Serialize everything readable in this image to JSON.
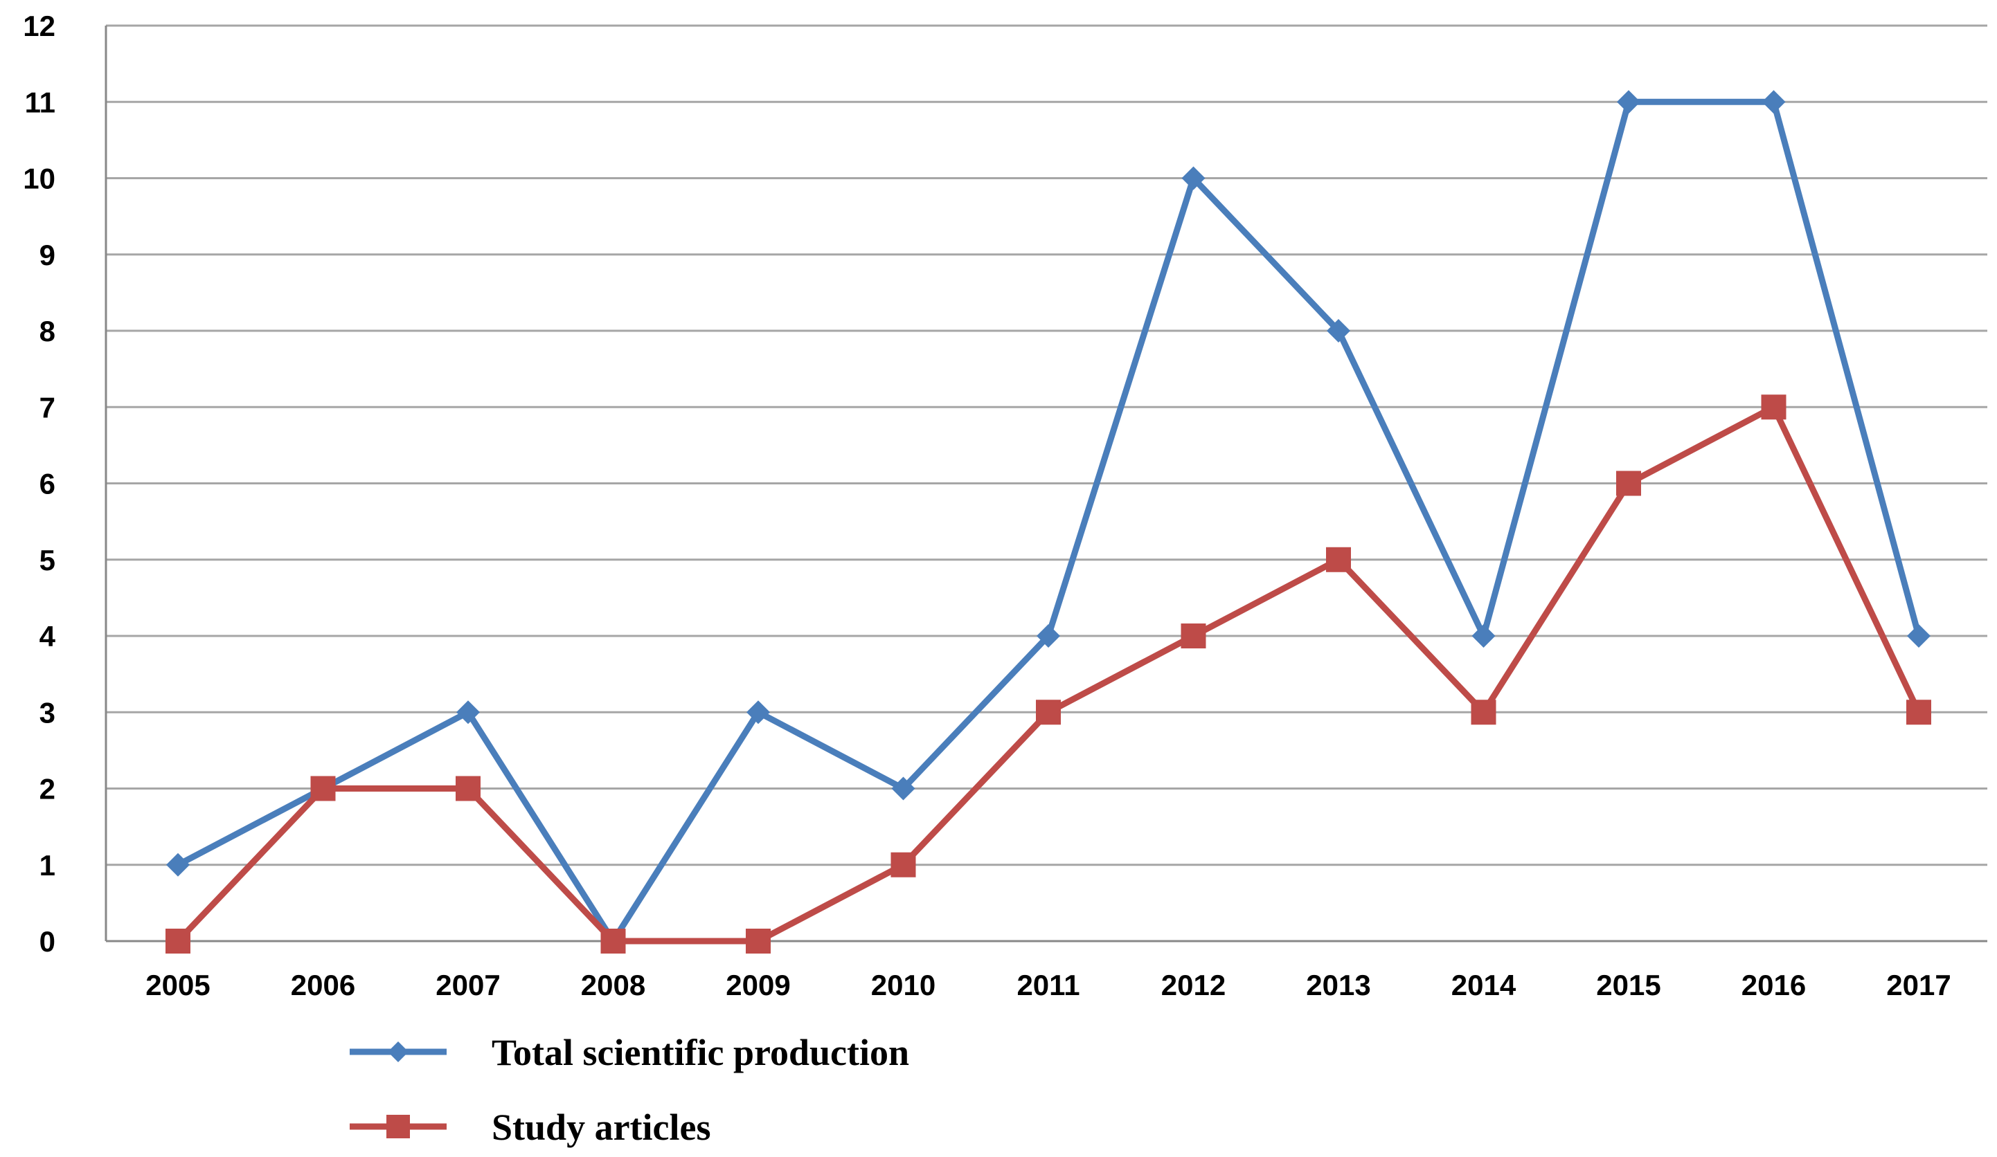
{
  "chart_data": {
    "type": "line",
    "title": "",
    "xlabel": "",
    "ylabel": "",
    "categories": [
      "2005",
      "2006",
      "2007",
      "2008",
      "2009",
      "2010",
      "2011",
      "2012",
      "2013",
      "2014",
      "2015",
      "2016",
      "2017"
    ],
    "ylim": [
      0,
      12
    ],
    "yticks": [
      "0",
      "1",
      "2",
      "3",
      "4",
      "5",
      "6",
      "7",
      "8",
      "9",
      "10",
      "11",
      "12"
    ],
    "grid": true,
    "legend_position": "bottom",
    "series": [
      {
        "name": "Total scientific production",
        "color": "#4a7ebb",
        "marker": "diamond",
        "values": [
          1,
          2,
          3,
          0,
          3,
          2,
          4,
          10,
          8,
          4,
          11,
          11,
          4
        ]
      },
      {
        "name": "Study articles",
        "color": "#be4b48",
        "marker": "square",
        "values": [
          0,
          2,
          2,
          0,
          0,
          1,
          3,
          4,
          5,
          3,
          6,
          7,
          3
        ]
      }
    ]
  }
}
